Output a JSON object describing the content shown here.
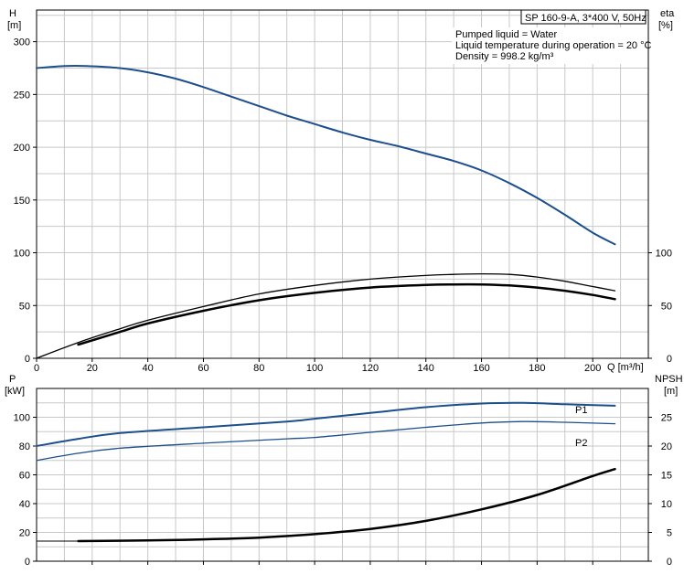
{
  "chart_data": [
    {
      "type": "line",
      "title": "SP 160-9-A, 3*400 V, 50Hz",
      "info_lines": [
        "Pumped liquid = Water",
        "Liquid temperature during operation = 20 °C",
        "Density = 998.2 kg/m³"
      ],
      "x_axis": {
        "label": "Q [m³/h]",
        "range": [
          0,
          220
        ],
        "ticks": [
          0,
          20,
          40,
          60,
          80,
          100,
          120,
          140,
          160,
          180,
          200
        ]
      },
      "y_left": {
        "label": [
          "H",
          "[m]"
        ],
        "range": [
          0,
          330
        ],
        "ticks": [
          0,
          50,
          100,
          150,
          200,
          250,
          300
        ]
      },
      "y_right": {
        "label": [
          "eta",
          "[%]"
        ],
        "range": [
          0,
          330
        ],
        "ticks": [
          0,
          50,
          100
        ]
      },
      "grid": true,
      "series": [
        {
          "color": "#1c4f8c",
          "axis": "left",
          "width": 2,
          "x": [
            0,
            10,
            18,
            30,
            40,
            50,
            60,
            70,
            80,
            90,
            100,
            110,
            120,
            130,
            140,
            150,
            160,
            170,
            180,
            190,
            200,
            208
          ],
          "y": [
            275,
            277,
            277,
            275,
            271,
            265,
            257,
            248,
            239,
            230,
            222,
            214,
            207,
            201,
            194,
            187,
            178,
            166,
            152,
            136,
            119,
            108
          ]
        },
        {
          "color": "#000000",
          "axis": "right",
          "width": 1.3,
          "x": [
            0,
            15,
            30,
            40,
            60,
            80,
            100,
            120,
            140,
            150,
            160,
            170,
            180,
            190,
            200,
            208
          ],
          "y": [
            0,
            15,
            28,
            36,
            49,
            61,
            69,
            75,
            78.5,
            79.5,
            80,
            79.5,
            77,
            73,
            68,
            64
          ]
        },
        {
          "color": "#000000",
          "axis": "right",
          "width": 2.5,
          "x": [
            15,
            30,
            40,
            60,
            80,
            100,
            120,
            140,
            150,
            160,
            170,
            180,
            190,
            200,
            208
          ],
          "y": [
            13,
            25,
            33,
            45,
            55,
            62,
            67,
            69.5,
            70,
            70,
            69,
            67,
            64,
            60,
            56
          ]
        }
      ]
    },
    {
      "type": "line",
      "x_axis": {
        "label": "",
        "range": [
          0,
          220
        ]
      },
      "y_left": {
        "label": [
          "P",
          "[kW]"
        ],
        "range": [
          0,
          120
        ],
        "ticks": [
          0,
          20,
          40,
          60,
          80,
          100
        ]
      },
      "y_right": {
        "label": [
          "NPSH",
          "[m]"
        ],
        "range": [
          0,
          30
        ],
        "ticks": [
          0,
          5,
          10,
          15,
          20,
          25
        ]
      },
      "grid": true,
      "series": [
        {
          "name": "P1",
          "color": "#1c4f8c",
          "axis": "left",
          "width": 2,
          "x": [
            0,
            15,
            30,
            60,
            90,
            100,
            120,
            140,
            160,
            175,
            190,
            208
          ],
          "y": [
            80,
            85,
            89,
            93,
            97,
            99,
            103,
            107,
            109.5,
            110,
            109,
            108
          ]
        },
        {
          "name": "P2",
          "color": "#1c4f8c",
          "axis": "left",
          "width": 1.3,
          "x": [
            0,
            15,
            30,
            60,
            90,
            100,
            120,
            140,
            160,
            175,
            190,
            208
          ],
          "y": [
            70,
            75,
            78.5,
            82,
            85,
            86,
            89.5,
            93,
            96,
            97,
            96.5,
            95.5
          ]
        },
        {
          "color": "#000000",
          "axis": "right",
          "width": 2.5,
          "x": [
            15,
            40,
            60,
            80,
            100,
            120,
            140,
            160,
            180,
            200,
            208
          ],
          "y": [
            3.5,
            3.6,
            3.8,
            4.1,
            4.7,
            5.6,
            7,
            9,
            11.5,
            14.8,
            16
          ]
        }
      ]
    }
  ]
}
